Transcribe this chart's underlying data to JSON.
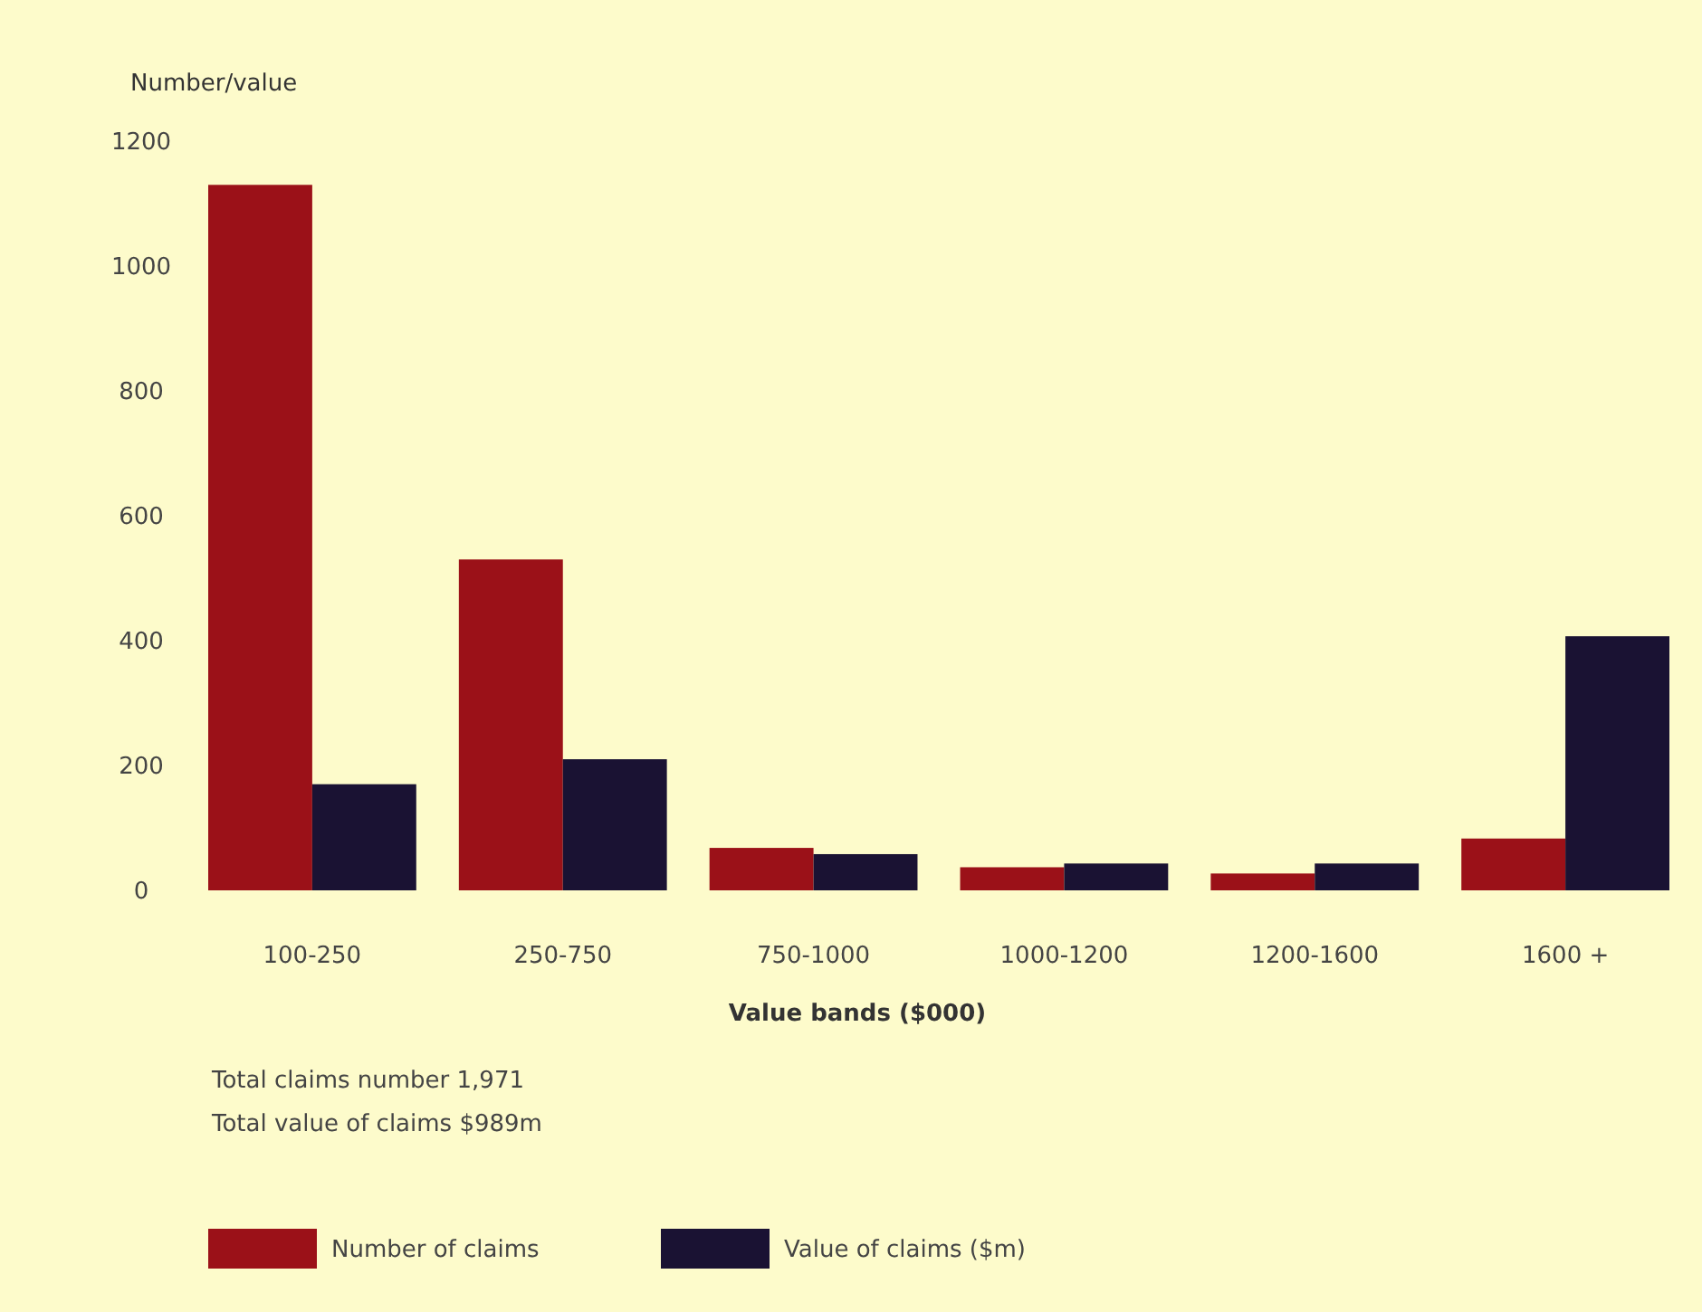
{
  "chart_data": {
    "type": "bar",
    "ylabel": "Number/value",
    "xlabel": "Value bands ($000)",
    "categories": [
      "100-250",
      "250-750",
      "750-1000",
      "1000-1200",
      "1200-1600",
      "1600 +"
    ],
    "series": [
      {
        "name": "Number of claims",
        "color": "#9b1118",
        "values": [
          1130,
          530,
          68,
          37,
          27,
          83
        ]
      },
      {
        "name": "Value of claims ($m)",
        "color": "#1a1233",
        "values": [
          170,
          210,
          58,
          43,
          43,
          407
        ]
      }
    ],
    "ylim": [
      0,
      1200
    ],
    "yticks": [
      0,
      200,
      400,
      600,
      800,
      1000,
      1200
    ],
    "grid": false,
    "legend": "bottom",
    "annotations": [
      "Total claims number 1,971",
      "Total value of claims $989m"
    ]
  }
}
